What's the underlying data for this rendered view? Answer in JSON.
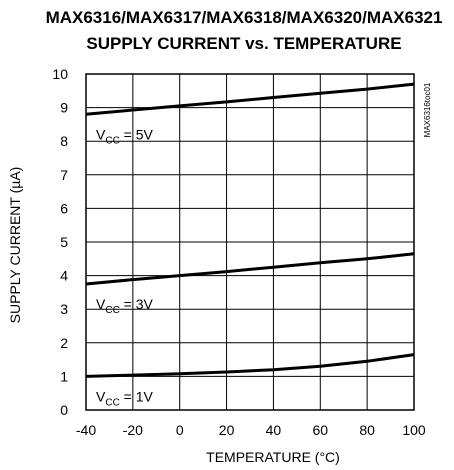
{
  "title_line1": "MAX6316/MAX6317/MAX6318/MAX6320/MAX6321",
  "title_line2": "SUPPLY CURRENT vs. TEMPERATURE",
  "side_code": "MAX6316toc01",
  "chart_data": {
    "type": "line",
    "xlabel": "TEMPERATURE (°C)",
    "ylabel": "SUPPLY CURRENT (µA)",
    "xlim": [
      -40,
      100
    ],
    "ylim": [
      0,
      10
    ],
    "xticks": [
      -40,
      -20,
      0,
      20,
      40,
      60,
      80,
      100
    ],
    "yticks": [
      0,
      1,
      2,
      3,
      4,
      5,
      6,
      7,
      8,
      9,
      10
    ],
    "grid": true,
    "series": [
      {
        "name": "V_CC = 5V",
        "label_main": "V",
        "label_sub": "CC",
        "label_rest": " = 5V",
        "x": [
          -40,
          -20,
          0,
          20,
          40,
          60,
          80,
          100
        ],
        "y": [
          8.8,
          8.93,
          9.05,
          9.17,
          9.3,
          9.43,
          9.55,
          9.7
        ]
      },
      {
        "name": "V_CC = 3V",
        "label_main": "V",
        "label_sub": "CC",
        "label_rest": " = 3V",
        "x": [
          -40,
          -20,
          0,
          20,
          40,
          60,
          80,
          100
        ],
        "y": [
          3.75,
          3.88,
          4.0,
          4.12,
          4.25,
          4.38,
          4.5,
          4.65
        ]
      },
      {
        "name": "V_CC = 1V",
        "label_main": "V",
        "label_sub": "CC",
        "label_rest": " = 1V",
        "x": [
          -40,
          -20,
          0,
          20,
          40,
          60,
          80,
          100
        ],
        "y": [
          1.0,
          1.04,
          1.08,
          1.13,
          1.2,
          1.3,
          1.45,
          1.65
        ]
      }
    ]
  }
}
